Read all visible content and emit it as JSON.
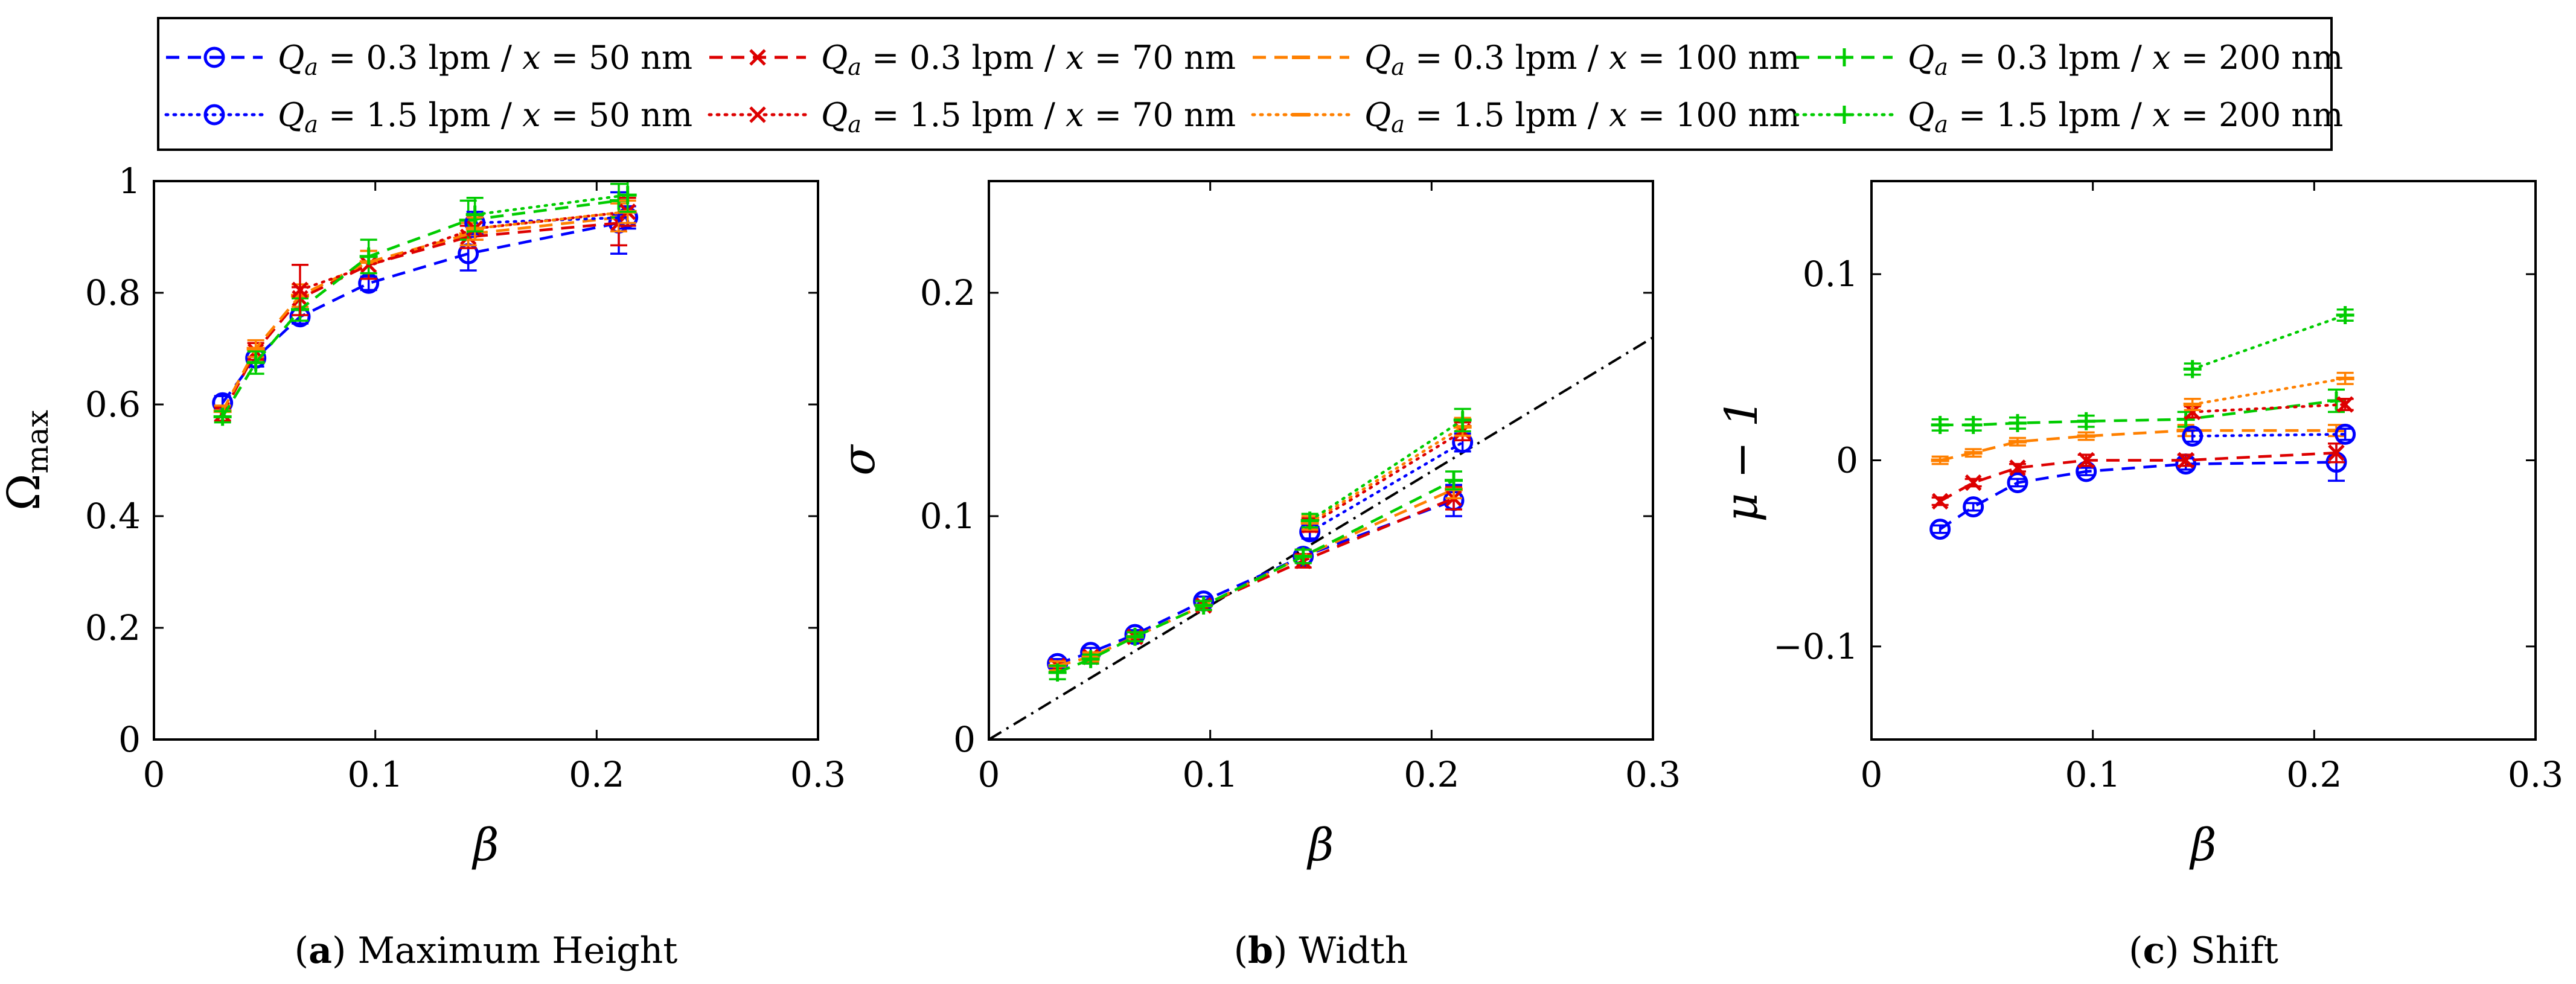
{
  "legend": {
    "position": "top-center",
    "entries": [
      {
        "qa_var": "Q",
        "qa_sub": "a",
        "qa_val": "= 0.3 lpm /",
        "x_var": "x",
        "x_val": "= 50 nm",
        "color": "#0000ff",
        "dash": "dashed",
        "marker": "o"
      },
      {
        "qa_var": "Q",
        "qa_sub": "a",
        "qa_val": "= 0.3 lpm /",
        "x_var": "x",
        "x_val": "= 70 nm",
        "color": "#dd0000",
        "dash": "dashed",
        "marker": "x"
      },
      {
        "qa_var": "Q",
        "qa_sub": "a",
        "qa_val": "= 0.3 lpm /",
        "x_var": "x",
        "x_val": "= 100 nm",
        "color": "#ff8000",
        "dash": "dashed",
        "marker": "-"
      },
      {
        "qa_var": "Q",
        "qa_sub": "a",
        "qa_val": "= 0.3 lpm /",
        "x_var": "x",
        "x_val": "= 200 nm",
        "color": "#00cc00",
        "dash": "dashed",
        "marker": "+"
      },
      {
        "qa_var": "Q",
        "qa_sub": "a",
        "qa_val": "= 1.5 lpm /",
        "x_var": "x",
        "x_val": "= 50 nm",
        "color": "#0000ff",
        "dash": "dotted",
        "marker": "o"
      },
      {
        "qa_var": "Q",
        "qa_sub": "a",
        "qa_val": "= 1.5 lpm /",
        "x_var": "x",
        "x_val": "= 70 nm",
        "color": "#dd0000",
        "dash": "dotted",
        "marker": "x"
      },
      {
        "qa_var": "Q",
        "qa_sub": "a",
        "qa_val": "= 1.5 lpm /",
        "x_var": "x",
        "x_val": "= 100 nm",
        "color": "#ff8000",
        "dash": "dotted",
        "marker": "-"
      },
      {
        "qa_var": "Q",
        "qa_sub": "a",
        "qa_val": "= 1.5 lpm /",
        "x_var": "x",
        "x_val": "= 200 nm",
        "color": "#00cc00",
        "dash": "dotted",
        "marker": "+"
      }
    ]
  },
  "chart_data": [
    {
      "type": "line",
      "caption_letter": "(a)",
      "caption_text": "Maximum Height",
      "xlabel": "β",
      "ylabel_main": "Ω",
      "ylabel_sub": "max",
      "xlim": [
        0,
        0.3
      ],
      "ylim": [
        0,
        1
      ],
      "xticks": [
        0,
        0.1,
        0.2,
        0.3
      ],
      "xtick_labels": [
        "0",
        "0.1",
        "0.2",
        "0.3"
      ],
      "yticks": [
        0,
        0.2,
        0.4,
        0.6,
        0.8,
        1
      ],
      "ytick_labels": [
        "0",
        "0.2",
        "0.4",
        "0.6",
        "0.8",
        "1"
      ],
      "series": [
        {
          "name": "Qa = 0.3 lpm / x = 50 nm",
          "x": [
            0.031,
            0.046,
            0.066,
            0.097,
            0.142,
            0.21
          ],
          "y": [
            0.603,
            0.683,
            0.757,
            0.817,
            0.87,
            0.925
          ],
          "err": [
            0.012,
            0.015,
            0.012,
            0.012,
            0.03,
            0.055
          ]
        },
        {
          "name": "Qa = 0.3 lpm / x = 70 nm",
          "x": [
            0.031,
            0.046,
            0.066,
            0.097,
            0.142,
            0.21
          ],
          "y": [
            0.583,
            0.695,
            0.79,
            0.85,
            0.9,
            0.925
          ],
          "err": [
            0.012,
            0.015,
            0.02,
            0.025,
            0.02,
            0.04
          ]
        },
        {
          "name": "Qa = 0.3 lpm / x = 100 nm",
          "x": [
            0.031,
            0.046,
            0.066,
            0.097,
            0.142,
            0.21
          ],
          "y": [
            0.588,
            0.7,
            0.795,
            0.855,
            0.905,
            0.935
          ],
          "err": [
            0.01,
            0.015,
            0.02,
            0.02,
            0.02,
            0.025
          ]
        },
        {
          "name": "Qa = 0.3 lpm / x = 200 nm",
          "x": [
            0.031,
            0.046,
            0.066,
            0.097,
            0.142,
            0.21
          ],
          "y": [
            0.578,
            0.675,
            0.77,
            0.865,
            0.93,
            0.965
          ],
          "err": [
            0.01,
            0.02,
            0.02,
            0.03,
            0.035,
            0.03
          ]
        },
        {
          "name": "Qa = 1.5 lpm / x = 50 nm",
          "x": [
            0.145,
            0.214
          ],
          "y": [
            0.925,
            0.935
          ],
          "err": [
            0.02,
            0.02
          ]
        },
        {
          "name": "Qa = 1.5 lpm / x = 70 nm",
          "x": [
            0.066,
            0.145,
            0.214
          ],
          "y": [
            0.805,
            0.915,
            0.945
          ],
          "err": [
            0.045,
            0.02,
            0.025
          ]
        },
        {
          "name": "Qa = 1.5 lpm / x = 100 nm",
          "x": [
            0.145,
            0.214
          ],
          "y": [
            0.915,
            0.945
          ],
          "err": [
            0.02,
            0.02
          ]
        },
        {
          "name": "Qa = 1.5 lpm / x = 200 nm",
          "x": [
            0.145,
            0.214
          ],
          "y": [
            0.94,
            0.975
          ],
          "err": [
            0.03,
            0.03
          ]
        }
      ]
    },
    {
      "type": "line",
      "caption_letter": "(b)",
      "caption_text": "Width",
      "xlabel": "β",
      "ylabel_main": "σ",
      "ylabel_sub": "",
      "xlim": [
        0,
        0.3
      ],
      "ylim": [
        0,
        0.25
      ],
      "xticks": [
        0,
        0.1,
        0.2,
        0.3
      ],
      "xtick_labels": [
        "0",
        "0.1",
        "0.2",
        "0.3"
      ],
      "yticks": [
        0,
        0.1,
        0.2
      ],
      "ytick_labels": [
        "0",
        "0.1",
        "0.2"
      ],
      "reference_line": {
        "x": [
          0,
          0.3
        ],
        "y": [
          0,
          0.18
        ],
        "style": "dashdot",
        "color": "#000000"
      },
      "series": [
        {
          "name": "Qa = 0.3 lpm / x = 50 nm",
          "x": [
            0.031,
            0.046,
            0.066,
            0.097,
            0.142,
            0.21
          ],
          "y": [
            0.034,
            0.039,
            0.047,
            0.062,
            0.082,
            0.107
          ],
          "err": [
            0.002,
            0.002,
            0.002,
            0.002,
            0.003,
            0.007
          ]
        },
        {
          "name": "Qa = 0.3 lpm / x = 70 nm",
          "x": [
            0.031,
            0.046,
            0.066,
            0.097,
            0.142,
            0.21
          ],
          "y": [
            0.033,
            0.037,
            0.046,
            0.06,
            0.08,
            0.108
          ],
          "err": [
            0.002,
            0.002,
            0.002,
            0.002,
            0.003,
            0.005
          ]
        },
        {
          "name": "Qa = 0.3 lpm / x = 100 nm",
          "x": [
            0.031,
            0.046,
            0.066,
            0.097,
            0.142,
            0.21
          ],
          "y": [
            0.033,
            0.037,
            0.046,
            0.06,
            0.082,
            0.112
          ],
          "err": [
            0.002,
            0.002,
            0.002,
            0.002,
            0.003,
            0.004
          ]
        },
        {
          "name": "Qa = 0.3 lpm / x = 200 nm",
          "x": [
            0.031,
            0.046,
            0.066,
            0.097,
            0.142,
            0.21
          ],
          "y": [
            0.03,
            0.036,
            0.046,
            0.06,
            0.082,
            0.116
          ],
          "err": [
            0.003,
            0.002,
            0.002,
            0.002,
            0.003,
            0.004
          ]
        },
        {
          "name": "Qa = 1.5 lpm / x = 50 nm",
          "x": [
            0.145,
            0.214
          ],
          "y": [
            0.093,
            0.133
          ],
          "err": [
            0.003,
            0.004
          ]
        },
        {
          "name": "Qa = 1.5 lpm / x = 70 nm",
          "x": [
            0.145,
            0.214
          ],
          "y": [
            0.096,
            0.138
          ],
          "err": [
            0.003,
            0.004
          ]
        },
        {
          "name": "Qa = 1.5 lpm / x = 100 nm",
          "x": [
            0.145,
            0.214
          ],
          "y": [
            0.097,
            0.14
          ],
          "err": [
            0.003,
            0.004
          ]
        },
        {
          "name": "Qa = 1.5 lpm / x = 200 nm",
          "x": [
            0.145,
            0.214
          ],
          "y": [
            0.098,
            0.143
          ],
          "err": [
            0.003,
            0.005
          ]
        }
      ]
    },
    {
      "type": "line",
      "caption_letter": "(c)",
      "caption_text": "Shift",
      "xlabel": "β",
      "ylabel_main": "μ − 1",
      "ylabel_sub": "",
      "xlim": [
        0,
        0.3
      ],
      "ylim": [
        -0.15,
        0.15
      ],
      "xticks": [
        0,
        0.1,
        0.2,
        0.3
      ],
      "xtick_labels": [
        "0",
        "0.1",
        "0.2",
        "0.3"
      ],
      "yticks": [
        -0.1,
        0,
        0.1
      ],
      "ytick_labels": [
        "−0.1",
        "0",
        "0.1"
      ],
      "series": [
        {
          "name": "Qa = 0.3 lpm / x = 50 nm",
          "x": [
            0.031,
            0.046,
            0.066,
            0.097,
            0.142,
            0.21
          ],
          "y": [
            -0.037,
            -0.025,
            -0.012,
            -0.006,
            -0.002,
            -0.001
          ],
          "err": [
            0.002,
            0.002,
            0.002,
            0.002,
            0.003,
            0.01
          ]
        },
        {
          "name": "Qa = 0.3 lpm / x = 70 nm",
          "x": [
            0.031,
            0.046,
            0.066,
            0.097,
            0.142,
            0.21
          ],
          "y": [
            -0.022,
            -0.012,
            -0.004,
            0.0,
            0.0,
            0.004
          ],
          "err": [
            0.002,
            0.002,
            0.002,
            0.003,
            0.003,
            0.005
          ]
        },
        {
          "name": "Qa = 0.3 lpm / x = 100 nm",
          "x": [
            0.031,
            0.046,
            0.066,
            0.097,
            0.142,
            0.21
          ],
          "y": [
            0.0,
            0.004,
            0.01,
            0.013,
            0.016,
            0.016
          ],
          "err": [
            0.002,
            0.002,
            0.002,
            0.002,
            0.003,
            0.003
          ]
        },
        {
          "name": "Qa = 0.3 lpm / x = 200 nm",
          "x": [
            0.031,
            0.046,
            0.066,
            0.097,
            0.142,
            0.21
          ],
          "y": [
            0.019,
            0.019,
            0.02,
            0.021,
            0.022,
            0.032
          ],
          "err": [
            0.003,
            0.003,
            0.003,
            0.003,
            0.004,
            0.006
          ]
        },
        {
          "name": "Qa = 1.5 lpm / x = 50 nm",
          "x": [
            0.145,
            0.214
          ],
          "y": [
            0.013,
            0.014
          ],
          "err": [
            0.003,
            0.003
          ]
        },
        {
          "name": "Qa = 1.5 lpm / x = 70 nm",
          "x": [
            0.145,
            0.214
          ],
          "y": [
            0.026,
            0.03
          ],
          "err": [
            0.003,
            0.003
          ]
        },
        {
          "name": "Qa = 1.5 lpm / x = 100 nm",
          "x": [
            0.145,
            0.214
          ],
          "y": [
            0.03,
            0.044
          ],
          "err": [
            0.003,
            0.003
          ]
        },
        {
          "name": "Qa = 1.5 lpm / x = 200 nm",
          "x": [
            0.145,
            0.214
          ],
          "y": [
            0.049,
            0.078
          ],
          "err": [
            0.003,
            0.003
          ]
        }
      ]
    }
  ]
}
